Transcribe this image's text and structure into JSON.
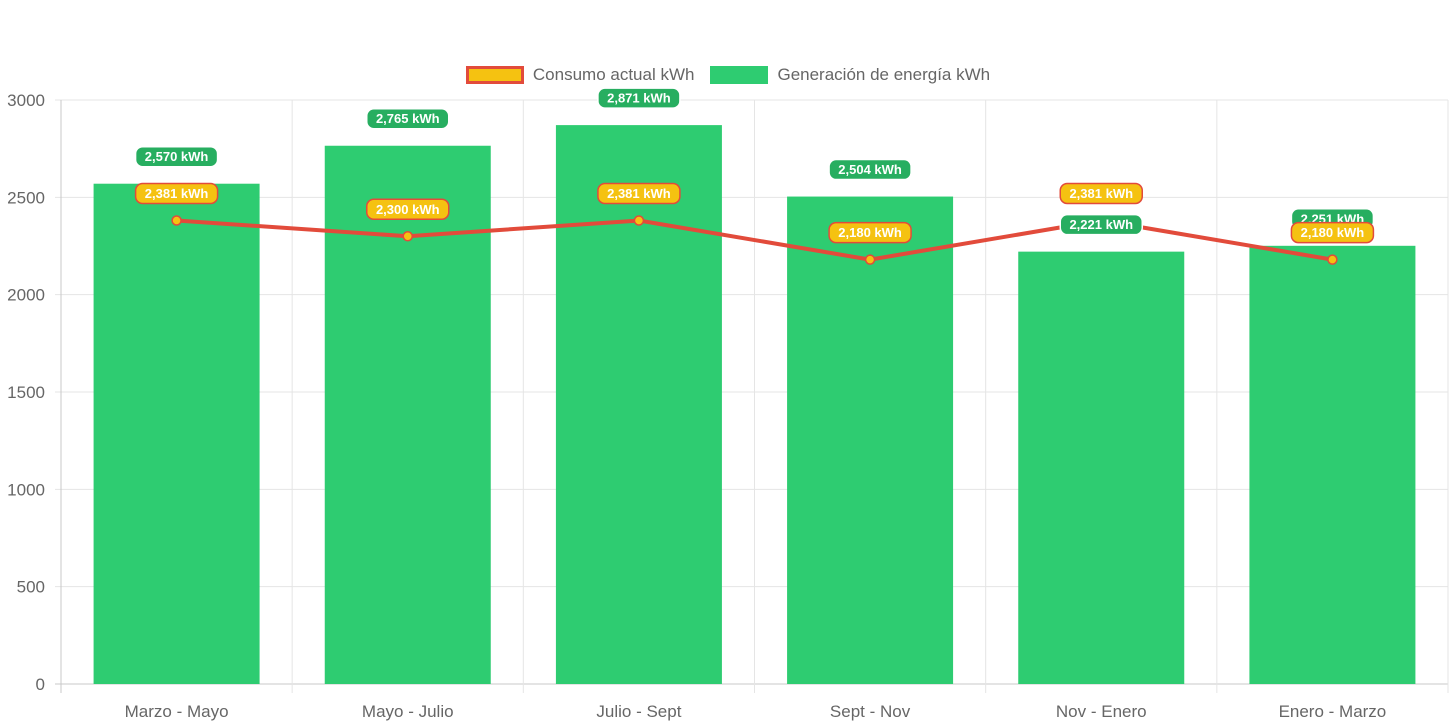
{
  "chart_data": {
    "type": "bar",
    "categories": [
      "Marzo - Mayo",
      "Mayo - Julio",
      "Julio - Sept",
      "Sept - Nov",
      "Nov - Enero",
      "Enero - Marzo"
    ],
    "series": [
      {
        "name": "Consumo actual kWh",
        "type": "line",
        "values": [
          2381,
          2300,
          2381,
          2180,
          2381,
          2180
        ],
        "labels": [
          "2,381 kWh",
          "2,300 kWh",
          "2,381 kWh",
          "2,180 kWh",
          "2,381 kWh",
          "2,180 kWh"
        ],
        "line_color": "#e24b3b",
        "fill_color": "#f5c211"
      },
      {
        "name": "Generación de energía kWh",
        "type": "bar",
        "values": [
          2570,
          2765,
          2871,
          2504,
          2221,
          2251
        ],
        "labels": [
          "2,570 kWh",
          "2,765 kWh",
          "2,871 kWh",
          "2,504 kWh",
          "2,221 kWh",
          "2,251 kWh"
        ],
        "color": "#2ecc71",
        "label_color": "#27ae60"
      }
    ],
    "yticks": [
      "0",
      "500",
      "1000",
      "1500",
      "2000",
      "2500",
      "3000"
    ],
    "ylim": [
      0,
      3000
    ],
    "grid": true,
    "legend_position": "top"
  }
}
